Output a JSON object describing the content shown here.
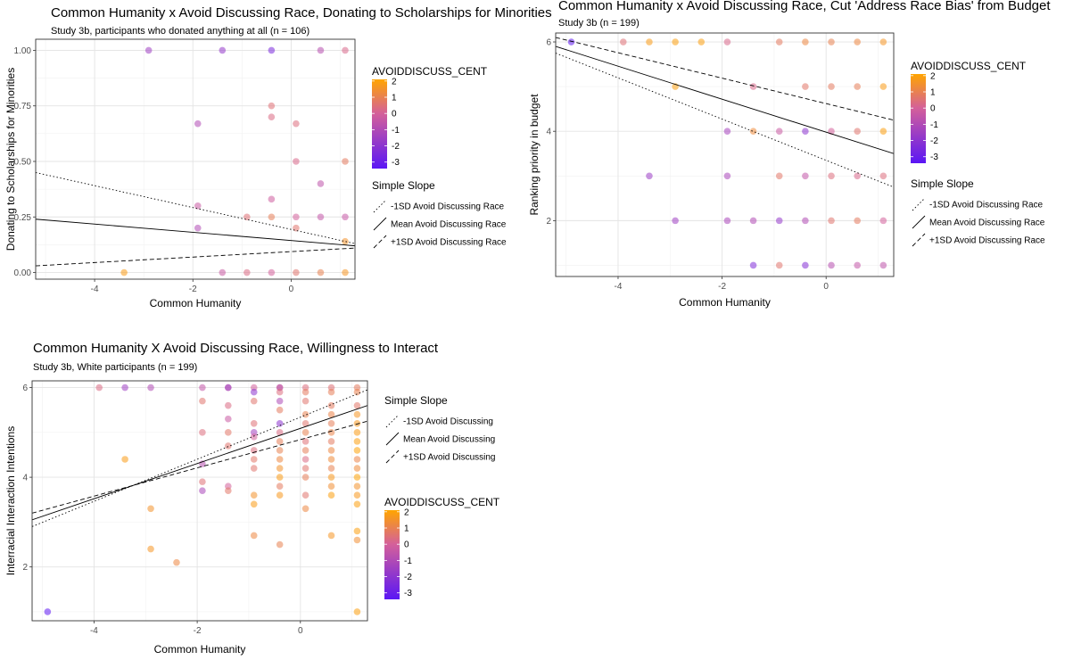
{
  "chart_data": [
    {
      "type": "scatter",
      "title": "Common Humanity x Avoid Discussing Race, Donating to Scholarships for Minorities",
      "subtitle": "Study 3b, participants who donated anything at all (n = 106)",
      "xlabel": "Common Humanity",
      "ylabel": "Donating to Scholarships for Minorities",
      "xlim": [
        -5.2,
        1.3
      ],
      "ylim": [
        -0.03,
        1.05
      ],
      "xticks": [
        -4,
        -2,
        0
      ],
      "yticks": [
        0.0,
        0.25,
        0.5,
        0.75,
        1.0
      ],
      "ytick_labels": [
        "0.00",
        "0.25",
        "0.50",
        "0.75",
        "1.00"
      ],
      "color_legend": {
        "title": "AVOIDDISCUSS_CENT",
        "ticks": [
          2,
          1,
          0,
          -1,
          -2,
          -3
        ],
        "low_color": "#5a16f5",
        "mid_color": "#d4609a",
        "high_color": "#ffa500",
        "range": [
          -3.4,
          2.1
        ]
      },
      "slope_legend": {
        "title": "Simple Slope",
        "items": [
          {
            "label": "-1SD Avoid Discussing Race",
            "dash": "dotted"
          },
          {
            "label": "Mean Avoid Discussing Race",
            "dash": "solid"
          },
          {
            "label": "+1SD Avoid Discussing Race",
            "dash": "dashed"
          }
        ]
      },
      "lines": [
        {
          "style": "dotted",
          "x": [
            -5.2,
            1.3
          ],
          "y": [
            0.45,
            0.13
          ]
        },
        {
          "style": "solid",
          "x": [
            -5.2,
            1.3
          ],
          "y": [
            0.24,
            0.12
          ]
        },
        {
          "style": "dashed",
          "x": [
            -5.2,
            1.3
          ],
          "y": [
            0.03,
            0.11
          ]
        }
      ],
      "points": [
        [
          -2.9,
          1.0,
          -1.5
        ],
        [
          -1.4,
          1.0,
          -1.8
        ],
        [
          -0.4,
          1.0,
          -2.5
        ],
        [
          0.6,
          1.0,
          -0.8
        ],
        [
          1.1,
          1.0,
          0.2
        ],
        [
          -0.4,
          0.75,
          0.5
        ],
        [
          -0.4,
          0.7,
          0.3
        ],
        [
          0.1,
          0.67,
          0.4
        ],
        [
          -1.9,
          0.67,
          -1.0
        ],
        [
          0.1,
          0.5,
          0.2
        ],
        [
          1.1,
          0.5,
          0.8
        ],
        [
          0.6,
          0.4,
          -0.6
        ],
        [
          -0.4,
          0.33,
          -0.2
        ],
        [
          -1.9,
          0.3,
          -0.3
        ],
        [
          -0.9,
          0.25,
          0.5
        ],
        [
          -0.4,
          0.25,
          0.9
        ],
        [
          0.1,
          0.25,
          0.0
        ],
        [
          0.6,
          0.25,
          -0.5
        ],
        [
          1.1,
          0.25,
          -0.4
        ],
        [
          -1.9,
          0.2,
          -1.0
        ],
        [
          0.1,
          0.2,
          0.6
        ],
        [
          1.1,
          0.14,
          1.5
        ],
        [
          -3.4,
          0.0,
          1.8
        ],
        [
          -1.4,
          0.0,
          -0.3
        ],
        [
          -0.9,
          0.0,
          0.3
        ],
        [
          -0.4,
          0.0,
          0.0
        ],
        [
          0.1,
          0.0,
          0.6
        ],
        [
          0.6,
          0.0,
          1.0
        ],
        [
          1.1,
          0.0,
          1.6
        ]
      ]
    },
    {
      "type": "scatter",
      "title": "Common Humanity x Avoid Discussing Race, Cut 'Address Race Bias' from Budget",
      "subtitle": "Study 3b (n = 199)",
      "xlabel": "Common Humanity",
      "ylabel": "Ranking priority in budget",
      "xlim": [
        -5.2,
        1.3
      ],
      "ylim": [
        0.75,
        6.2
      ],
      "xticks": [
        -4,
        -2,
        0
      ],
      "yticks": [
        2,
        4,
        6
      ],
      "ytick_labels": [
        "2",
        "4",
        "6"
      ],
      "color_legend": {
        "title": "AVOIDDISCUSS_CENT",
        "ticks": [
          2,
          1,
          0,
          -1,
          -2,
          -3
        ],
        "low_color": "#5a16f5",
        "mid_color": "#d4609a",
        "high_color": "#ffa500",
        "range": [
          -3.4,
          2.1
        ]
      },
      "slope_legend": {
        "title": "Simple Slope",
        "items": [
          {
            "label": "-1SD Avoid Discussing Race",
            "dash": "dotted"
          },
          {
            "label": "Mean Avoid Discussing Race",
            "dash": "solid"
          },
          {
            "label": "+1SD Avoid Discussing Race",
            "dash": "dashed"
          }
        ]
      },
      "lines": [
        {
          "style": "dotted",
          "x": [
            -5.2,
            1.3
          ],
          "y": [
            5.75,
            2.75
          ]
        },
        {
          "style": "solid",
          "x": [
            -5.2,
            1.3
          ],
          "y": [
            5.9,
            3.5
          ]
        },
        {
          "style": "dashed",
          "x": [
            -5.2,
            1.3
          ],
          "y": [
            6.1,
            4.25
          ]
        }
      ],
      "points": [
        [
          -4.9,
          6,
          -3.2
        ],
        [
          -3.9,
          6,
          0.5
        ],
        [
          -3.4,
          6,
          1.8
        ],
        [
          -2.9,
          6,
          1.9
        ],
        [
          -2.4,
          6,
          1.9
        ],
        [
          -1.9,
          6,
          0.2
        ],
        [
          -0.9,
          6,
          0.8
        ],
        [
          -0.4,
          6,
          1.2
        ],
        [
          0.1,
          6,
          1.0
        ],
        [
          0.6,
          6,
          1.2
        ],
        [
          1.1,
          6,
          1.6
        ],
        [
          -2.9,
          5,
          1.9
        ],
        [
          -1.4,
          5,
          0.2
        ],
        [
          -0.4,
          5,
          0.7
        ],
        [
          0.1,
          5,
          0.8
        ],
        [
          0.6,
          5,
          0.9
        ],
        [
          1.1,
          5,
          1.8
        ],
        [
          -1.9,
          4,
          -1.3
        ],
        [
          -1.4,
          4,
          1.3
        ],
        [
          -0.9,
          4,
          -0.3
        ],
        [
          -0.4,
          4,
          -2.0
        ],
        [
          0.1,
          4,
          0.0
        ],
        [
          0.6,
          4,
          0.6
        ],
        [
          1.1,
          4,
          1.9
        ],
        [
          -3.4,
          3,
          -1.6
        ],
        [
          -1.9,
          3,
          -1.2
        ],
        [
          -0.9,
          3,
          0.7
        ],
        [
          -0.4,
          3,
          -0.5
        ],
        [
          0.1,
          3,
          0.4
        ],
        [
          0.6,
          3,
          0.2
        ],
        [
          1.1,
          3,
          0.4
        ],
        [
          -2.9,
          2,
          -1.5
        ],
        [
          -1.9,
          2,
          -1.2
        ],
        [
          -1.4,
          2,
          -1.0
        ],
        [
          -0.9,
          2,
          -1.8
        ],
        [
          -0.4,
          2,
          -1.0
        ],
        [
          0.1,
          2,
          0.6
        ],
        [
          0.6,
          2,
          0.8
        ],
        [
          1.1,
          2,
          0.0
        ],
        [
          -1.4,
          1,
          -2.3
        ],
        [
          -0.9,
          1,
          0.6
        ],
        [
          -0.4,
          1,
          -2.2
        ],
        [
          0.1,
          1,
          -0.8
        ],
        [
          0.6,
          1,
          -0.5
        ],
        [
          1.1,
          1,
          -0.6
        ]
      ]
    },
    {
      "type": "scatter",
      "title": "Common Humanity X Avoid Discussing Race, Willingness to Interact",
      "subtitle": "Study 3b, White participants (n = 199)",
      "xlabel": "Common Humanity",
      "ylabel": "Interracial Interaction Intentions",
      "xlim": [
        -5.2,
        1.3
      ],
      "ylim": [
        0.8,
        6.15
      ],
      "xticks": [
        -4,
        -2,
        0
      ],
      "yticks": [
        2,
        4,
        6
      ],
      "ytick_labels": [
        "2",
        "4",
        "6"
      ],
      "color_legend": {
        "title": "AVOIDDISCUSS_CENT",
        "ticks": [
          2,
          1,
          0,
          -1,
          -2,
          -3
        ],
        "low_color": "#5a16f5",
        "mid_color": "#d4609a",
        "high_color": "#ffa500",
        "range": [
          -3.4,
          2.1
        ]
      },
      "slope_legend": {
        "title": "Simple Slope",
        "items": [
          {
            "label": "-1SD Avoid Discussing",
            "dash": "dotted"
          },
          {
            "label": "Mean Avoid Discussing",
            "dash": "solid"
          },
          {
            "label": "+1SD Avoid Discussing",
            "dash": "dashed"
          }
        ]
      },
      "lines": [
        {
          "style": "dotted",
          "x": [
            -5.2,
            1.3
          ],
          "y": [
            2.9,
            5.95
          ]
        },
        {
          "style": "solid",
          "x": [
            -5.2,
            1.3
          ],
          "y": [
            3.05,
            5.6
          ]
        },
        {
          "style": "dashed",
          "x": [
            -5.2,
            1.3
          ],
          "y": [
            3.2,
            5.25
          ]
        }
      ],
      "points": [
        [
          -3.9,
          6,
          0.3
        ],
        [
          -3.4,
          6,
          -1.5
        ],
        [
          -2.9,
          6,
          -1.0
        ],
        [
          -1.9,
          6,
          -0.5
        ],
        [
          -1.4,
          6,
          -0.3
        ],
        [
          -0.9,
          6,
          0.0
        ],
        [
          -0.4,
          6,
          0.2
        ],
        [
          0.1,
          6,
          0.4
        ],
        [
          0.6,
          6,
          0.5
        ],
        [
          1.1,
          6,
          0.8
        ],
        [
          -1.4,
          6,
          -1.5
        ],
        [
          -0.4,
          6,
          -0.8
        ],
        [
          -0.9,
          5.9,
          -2.0
        ],
        [
          -0.4,
          5.9,
          0.4
        ],
        [
          0.1,
          5.9,
          0.8
        ],
        [
          0.6,
          5.9,
          0.9
        ],
        [
          1.1,
          5.9,
          1.0
        ],
        [
          -1.9,
          5.7,
          0.6
        ],
        [
          -1.4,
          5.6,
          0.3
        ],
        [
          -0.9,
          5.7,
          0.6
        ],
        [
          -0.4,
          5.7,
          -1.1
        ],
        [
          0.1,
          5.7,
          0.6
        ],
        [
          0.6,
          5.6,
          0.8
        ],
        [
          1.1,
          5.6,
          0.7
        ],
        [
          -0.4,
          5.5,
          0.8
        ],
        [
          0.1,
          5.4,
          1.0
        ],
        [
          0.6,
          5.4,
          1.1
        ],
        [
          1.1,
          5.4,
          1.6
        ],
        [
          -1.4,
          5.3,
          -0.3
        ],
        [
          -0.9,
          5.2,
          0.5
        ],
        [
          -0.4,
          5.2,
          -2.0
        ],
        [
          0.1,
          5.2,
          0.6
        ],
        [
          0.6,
          5.2,
          0.9
        ],
        [
          1.1,
          5.2,
          1.7
        ],
        [
          -1.9,
          5.0,
          0.4
        ],
        [
          -1.4,
          5.0,
          0.7
        ],
        [
          -0.9,
          5.0,
          -1.4
        ],
        [
          -0.4,
          5.0,
          0.3
        ],
        [
          0.1,
          5.0,
          1.0
        ],
        [
          0.6,
          5.0,
          1.1
        ],
        [
          1.1,
          5.0,
          1.8
        ],
        [
          -0.9,
          4.9,
          0.0
        ],
        [
          -0.4,
          4.8,
          0.9
        ],
        [
          0.1,
          4.8,
          0.5
        ],
        [
          0.6,
          4.8,
          0.8
        ],
        [
          1.1,
          4.8,
          1.9
        ],
        [
          -1.4,
          4.7,
          0.6
        ],
        [
          -0.9,
          4.6,
          0.4
        ],
        [
          -0.4,
          4.6,
          1.0
        ],
        [
          0.1,
          4.6,
          0.9
        ],
        [
          0.6,
          4.6,
          1.2
        ],
        [
          1.1,
          4.6,
          2.0
        ],
        [
          -0.9,
          4.4,
          0.7
        ],
        [
          -0.4,
          4.4,
          1.2
        ],
        [
          0.1,
          4.4,
          0.3
        ],
        [
          0.6,
          4.4,
          1.3
        ],
        [
          1.1,
          4.4,
          1.1
        ],
        [
          -3.4,
          4.4,
          1.8
        ],
        [
          -1.9,
          4.3,
          -0.8
        ],
        [
          -0.9,
          4.2,
          0.6
        ],
        [
          -0.4,
          4.2,
          1.5
        ],
        [
          0.1,
          4.2,
          0.6
        ],
        [
          0.6,
          4.2,
          1.0
        ],
        [
          1.1,
          4.2,
          1.3
        ],
        [
          -0.4,
          4.0,
          1.8
        ],
        [
          0.1,
          4.0,
          0.9
        ],
        [
          0.6,
          4.0,
          1.7
        ],
        [
          1.1,
          4.0,
          2.0
        ],
        [
          -1.9,
          3.9,
          0.5
        ],
        [
          -1.4,
          3.8,
          0.0
        ],
        [
          -0.4,
          3.8,
          0.8
        ],
        [
          0.6,
          3.8,
          1.4
        ],
        [
          1.1,
          3.8,
          1.5
        ],
        [
          -1.9,
          3.7,
          -1.2
        ],
        [
          -1.4,
          3.7,
          0.7
        ],
        [
          -0.9,
          3.6,
          1.5
        ],
        [
          -0.4,
          3.6,
          1.7
        ],
        [
          0.1,
          3.6,
          0.6
        ],
        [
          0.6,
          3.6,
          1.9
        ],
        [
          1.1,
          3.6,
          1.7
        ],
        [
          -2.9,
          3.3,
          1.5
        ],
        [
          -0.9,
          3.4,
          1.8
        ],
        [
          0.1,
          3.3,
          1.2
        ],
        [
          1.1,
          3.4,
          1.9
        ],
        [
          -0.9,
          2.7,
          1.2
        ],
        [
          0.6,
          2.7,
          1.6
        ],
        [
          1.1,
          2.6,
          1.4
        ],
        [
          1.1,
          2.8,
          1.9
        ],
        [
          -2.9,
          2.4,
          1.6
        ],
        [
          -0.4,
          2.5,
          1.0
        ],
        [
          -2.4,
          2.1,
          1.2
        ],
        [
          -4.9,
          1.0,
          -3.3
        ],
        [
          1.1,
          1.0,
          1.9
        ]
      ]
    }
  ]
}
